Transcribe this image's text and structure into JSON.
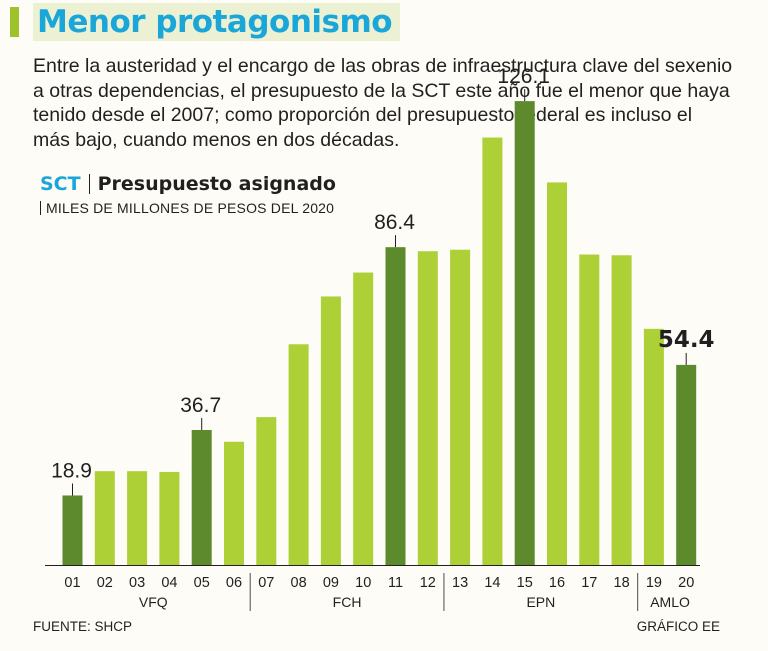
{
  "header": {
    "title": "Menor protagonismo",
    "intro": "Entre la austeridad y el encargo de las obras de infraestructura clave del sexenio a otras dependencias, el presupuesto de la SCT este año fue el menor que haya tenido desde el 2007; como proporción del presupuesto federal es incluso el más bajo, cuando menos en dos décadas."
  },
  "footer": {
    "source": "FUENTE: SHCP",
    "credit": "GRÁFICO EE"
  },
  "colors": {
    "light_bar": "#acd036",
    "dark_bar": "#5d8a2c",
    "title_blue": "#1aa6d8",
    "accent_green": "#9ec22b"
  },
  "chart_data": {
    "type": "bar",
    "title_prefix": "SCT",
    "title": "Presupuesto asignado",
    "subtitle": "MILES DE MILLONES DE PESOS DEL 2020",
    "categories": [
      "01",
      "02",
      "03",
      "04",
      "05",
      "06",
      "07",
      "08",
      "09",
      "10",
      "11",
      "12",
      "13",
      "14",
      "15",
      "16",
      "17",
      "18",
      "19",
      "20"
    ],
    "values": [
      18.9,
      25.5,
      25.5,
      25.3,
      36.7,
      33.5,
      40.2,
      60.0,
      73.0,
      79.5,
      86.4,
      85.3,
      85.7,
      116.2,
      126.1,
      104.0,
      84.4,
      84.2,
      64.2,
      54.4
    ],
    "highlighted": [
      "01",
      "05",
      "11",
      "15",
      "20"
    ],
    "data_labels": [
      {
        "category": "01",
        "text": "18.9",
        "bold": false
      },
      {
        "category": "05",
        "text": "36.7",
        "bold": false
      },
      {
        "category": "11",
        "text": "86.4",
        "bold": false
      },
      {
        "category": "15",
        "text": "126.1",
        "bold": false
      },
      {
        "category": "20",
        "text": "54.4",
        "bold": true
      }
    ],
    "groups": [
      {
        "label": "VFQ",
        "from": "01",
        "to": "06"
      },
      {
        "label": "FCH",
        "from": "07",
        "to": "12"
      },
      {
        "label": "EPN",
        "from": "13",
        "to": "18"
      },
      {
        "label": "AMLO",
        "from": "19",
        "to": "20"
      }
    ],
    "ylim": [
      0,
      140
    ],
    "xlabel": "",
    "ylabel": "",
    "grid": false
  }
}
